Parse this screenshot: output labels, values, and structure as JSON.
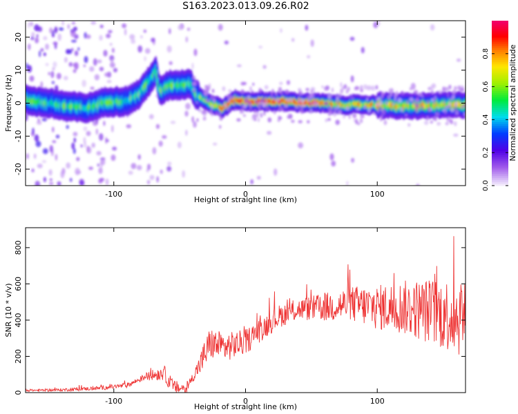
{
  "title": "S163.2023.013.09.26.R02",
  "colors": {
    "snr_line": "#ee3333",
    "plot_border": "#000000",
    "background": "#ffffff"
  },
  "chart_data": [
    {
      "type": "heatmap",
      "xlabel": "Height of straight line (km)",
      "ylabel": "Frequency (Hz)",
      "xlim": [
        -167,
        167
      ],
      "ylim": [
        -25,
        25
      ],
      "x_ticks": [
        -100,
        0,
        100
      ],
      "x_tick_labels": [
        "-100",
        "0",
        "100"
      ],
      "y_ticks": [
        -20,
        -10,
        0,
        10,
        20
      ],
      "y_tick_labels": [
        "-20",
        "-10",
        "0",
        "10",
        "20"
      ],
      "colorbar": {
        "label": "Normalized spectral amplitude",
        "range": [
          0,
          1
        ],
        "ticks": [
          0.0,
          0.2,
          0.4,
          0.6,
          0.8
        ],
        "tick_labels": [
          "0.0",
          "0.2",
          "0.4",
          "0.6",
          "0.8"
        ]
      },
      "ridge_frequency_hz": [
        {
          "x": -167,
          "y": 1.0
        },
        {
          "x": -150,
          "y": 0.0
        },
        {
          "x": -135,
          "y": -1.0
        },
        {
          "x": -120,
          "y": -1.5
        },
        {
          "x": -105,
          "y": 0.5
        },
        {
          "x": -90,
          "y": 0.5
        },
        {
          "x": -80,
          "y": 3.0
        },
        {
          "x": -72,
          "y": 7.5
        },
        {
          "x": -68,
          "y": 9.5
        },
        {
          "x": -65,
          "y": 3.5
        },
        {
          "x": -58,
          "y": 5.5
        },
        {
          "x": -50,
          "y": 5.5
        },
        {
          "x": -42,
          "y": 6.0
        },
        {
          "x": -38,
          "y": 3.0
        },
        {
          "x": -33,
          "y": 1.5
        },
        {
          "x": -25,
          "y": -0.5
        },
        {
          "x": -17,
          "y": -1.5
        },
        {
          "x": -8,
          "y": 1.0
        },
        {
          "x": 0,
          "y": 0.5
        },
        {
          "x": 30,
          "y": 0.5
        },
        {
          "x": 55,
          "y": 0.0
        },
        {
          "x": 75,
          "y": -0.5
        },
        {
          "x": 100,
          "y": -0.5
        },
        {
          "x": 120,
          "y": -1.0
        },
        {
          "x": 167,
          "y": -0.5
        }
      ]
    },
    {
      "type": "line",
      "xlabel": "Height of straight line (km)",
      "ylabel": "SNR (10 * v/v)",
      "xlim": [
        -167,
        167
      ],
      "ylim": [
        0,
        910
      ],
      "x_ticks": [
        -100,
        0,
        100
      ],
      "x_tick_labels": [
        "-100",
        "0",
        "100"
      ],
      "y_ticks": [
        0,
        200,
        400,
        600,
        800
      ],
      "y_tick_labels": [
        "0",
        "200",
        "400",
        "600",
        "800"
      ],
      "series": [
        {
          "values_envelope": [
            {
              "x": -167,
              "y": 12
            },
            {
              "x": -140,
              "y": 15
            },
            {
              "x": -110,
              "y": 25
            },
            {
              "x": -90,
              "y": 40
            },
            {
              "x": -75,
              "y": 90
            },
            {
              "x": -62,
              "y": 110
            },
            {
              "x": -55,
              "y": 30
            },
            {
              "x": -45,
              "y": 20
            },
            {
              "x": -35,
              "y": 150
            },
            {
              "x": -27,
              "y": 270
            },
            {
              "x": -15,
              "y": 250
            },
            {
              "x": 0,
              "y": 280
            },
            {
              "x": 10,
              "y": 340
            },
            {
              "x": 25,
              "y": 420
            },
            {
              "x": 40,
              "y": 460
            },
            {
              "x": 60,
              "y": 470
            },
            {
              "x": 80,
              "y": 490
            },
            {
              "x": 100,
              "y": 470
            },
            {
              "x": 120,
              "y": 470
            },
            {
              "x": 140,
              "y": 450
            },
            {
              "x": 160,
              "y": 420
            },
            {
              "x": 167,
              "y": 430
            }
          ],
          "noise_amplitude": [
            {
              "x": -167,
              "y": 5
            },
            {
              "x": -80,
              "y": 15
            },
            {
              "x": -60,
              "y": 45
            },
            {
              "x": -40,
              "y": 25
            },
            {
              "x": -30,
              "y": 90
            },
            {
              "x": 0,
              "y": 70
            },
            {
              "x": 40,
              "y": 60
            },
            {
              "x": 80,
              "y": 100
            },
            {
              "x": 120,
              "y": 150
            },
            {
              "x": 167,
              "y": 230
            }
          ]
        }
      ]
    }
  ]
}
